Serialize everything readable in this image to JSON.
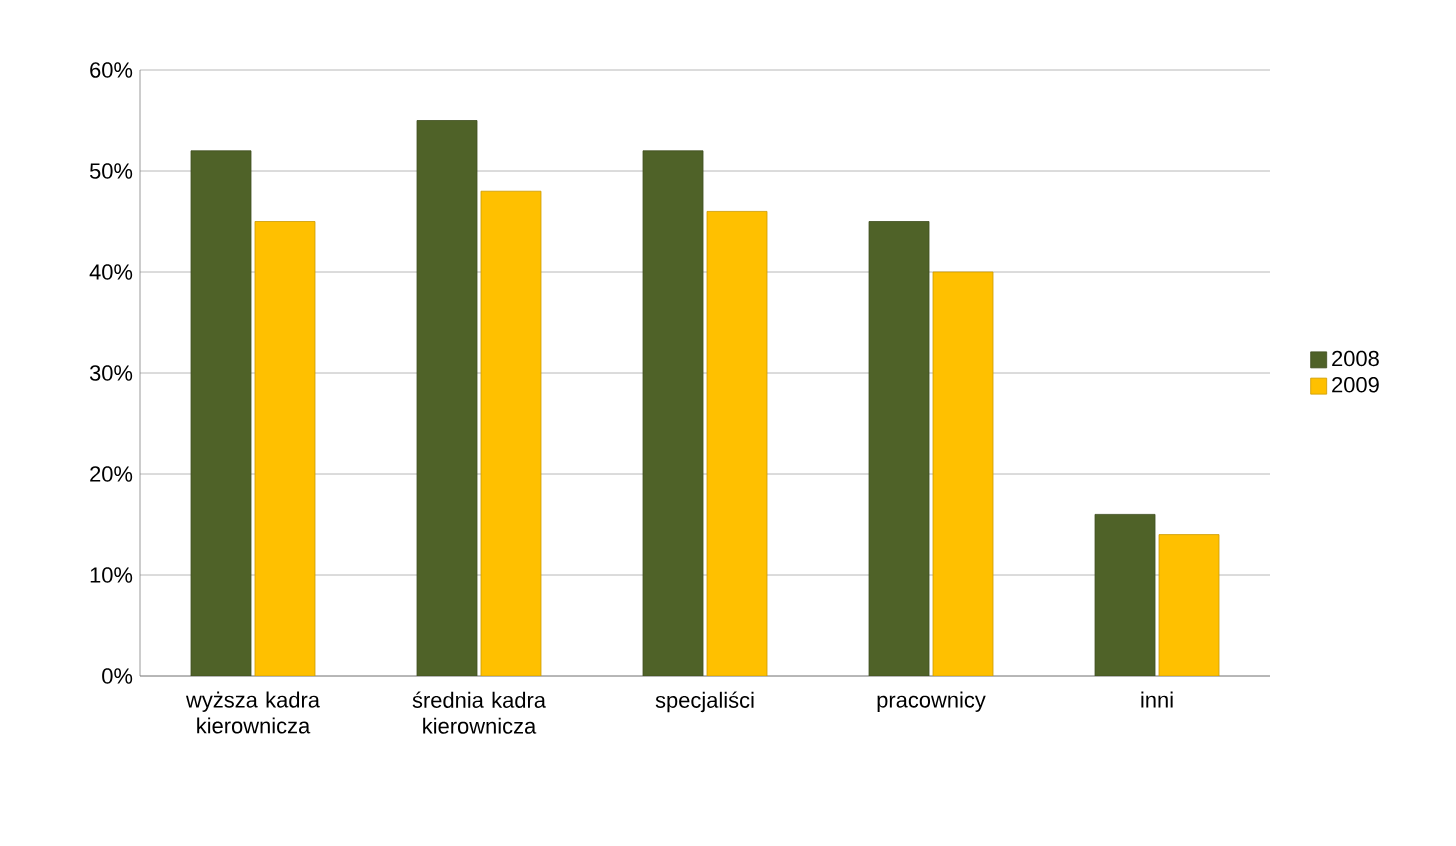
{
  "chart_data": {
    "type": "bar",
    "categories": [
      "wyższa kadra kierownicza",
      "średnia kadra kierownicza",
      "specjaliści",
      "pracownicy",
      "inni"
    ],
    "series": [
      {
        "name": "2008",
        "color": "#4f6228",
        "values": [
          52,
          55,
          52,
          45,
          16
        ]
      },
      {
        "name": "2009",
        "color": "#ffc000",
        "values": [
          45,
          48,
          46,
          40,
          14
        ]
      }
    ],
    "ylim": [
      0,
      60
    ],
    "yticks": [
      {
        "value": 0,
        "label": "0%"
      },
      {
        "value": 10,
        "label": "10%"
      },
      {
        "value": 20,
        "label": "20%"
      },
      {
        "value": 30,
        "label": "30%"
      },
      {
        "value": 40,
        "label": "40%"
      },
      {
        "value": 50,
        "label": "50%"
      },
      {
        "value": 60,
        "label": "60%"
      }
    ],
    "grid": "y",
    "legend": "right"
  }
}
